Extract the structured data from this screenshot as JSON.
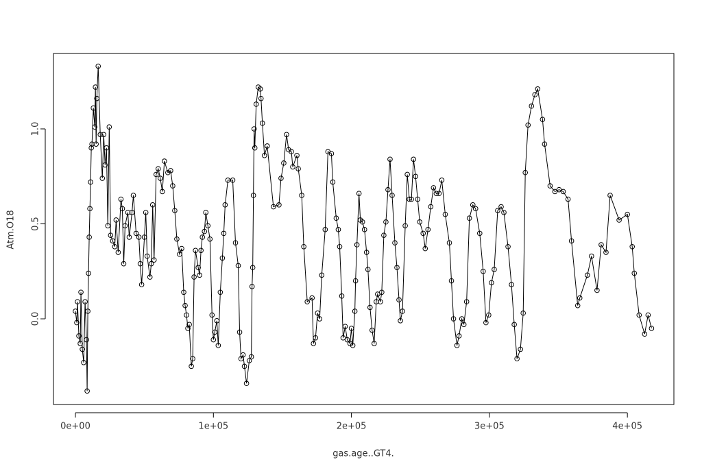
{
  "chart_data": {
    "type": "line",
    "xlabel": "gas.age..GT4.",
    "ylabel": "Atm.O18",
    "xlim": [
      -15900,
      433700
    ],
    "ylim": [
      -0.451,
      1.397
    ],
    "xticks": [
      {
        "value": 0,
        "label": "0e+00"
      },
      {
        "value": 100000,
        "label": "1e+05"
      },
      {
        "value": 200000,
        "label": "2e+05"
      },
      {
        "value": 300000,
        "label": "3e+05"
      },
      {
        "value": 400000,
        "label": "4e+05"
      }
    ],
    "yticks": [
      {
        "value": 0,
        "label": "0.0"
      },
      {
        "value": 0.5,
        "label": "0.5"
      },
      {
        "value": 1,
        "label": "1.0"
      }
    ],
    "grid": false,
    "marker": "circle",
    "x": [
      0,
      1000,
      1500,
      2500,
      3500,
      4000,
      5000,
      6000,
      7000,
      8000,
      8500,
      9000,
      9500,
      10000,
      10500,
      11000,
      11500,
      12000,
      13000,
      14000,
      14500,
      15000,
      15500,
      16500,
      18000,
      19500,
      20500,
      21500,
      22500,
      23500,
      24500,
      25500,
      27000,
      28500,
      29500,
      31000,
      33000,
      34000,
      35000,
      36000,
      38000,
      39000,
      41000,
      42000,
      44000,
      46000,
      47000,
      48000,
      50000,
      51000,
      52000,
      54000,
      55000,
      56000,
      57000,
      58500,
      60000,
      61500,
      63000,
      64500,
      67000,
      69000,
      70500,
      72000,
      73500,
      75500,
      77000,
      78500,
      79500,
      80500,
      81500,
      82500,
      84000,
      85000,
      86000,
      87000,
      89000,
      90000,
      91000,
      92000,
      93500,
      94500,
      96000,
      97500,
      99000,
      100000,
      101000,
      102500,
      103500,
      105000,
      106500,
      107500,
      108500,
      110500,
      114000,
      116000,
      118000,
      119000,
      120000,
      121500,
      122500,
      124000,
      126000,
      127500,
      128000,
      128500,
      129000,
      129500,
      130000,
      131000,
      132500,
      134000,
      134500,
      135500,
      137000,
      139000,
      143500,
      147500,
      149000,
      151000,
      153000,
      154500,
      156500,
      157500,
      160500,
      161500,
      164000,
      165500,
      168000,
      171500,
      172500,
      174000,
      175500,
      177000,
      178500,
      181000,
      183000,
      185500,
      186500,
      189000,
      190500,
      191500,
      193000,
      194000,
      195500,
      197000,
      199000,
      200000,
      201000,
      202500,
      203000,
      204000,
      205500,
      206500,
      208000,
      209500,
      211000,
      212000,
      213500,
      215000,
      216500,
      218000,
      219000,
      221000,
      222000,
      223500,
      225000,
      226500,
      228000,
      229500,
      231500,
      233000,
      234500,
      235500,
      237000,
      239000,
      240500,
      242000,
      243500,
      245000,
      246500,
      248000,
      249500,
      252000,
      253500,
      255500,
      257500,
      259500,
      261500,
      263500,
      265500,
      268000,
      271000,
      272500,
      274000,
      276500,
      278000,
      280000,
      281500,
      283500,
      285500,
      288000,
      290000,
      293000,
      295500,
      297500,
      299500,
      301500,
      303500,
      306000,
      308500,
      310500,
      313500,
      316000,
      318000,
      320000,
      322500,
      324500,
      326000,
      328000,
      330500,
      333000,
      335000,
      338500,
      340000,
      344000,
      347500,
      350500,
      353500,
      357000,
      359500,
      364000,
      365500,
      371000,
      374000,
      378000,
      381000,
      384500,
      387500,
      394000,
      400000,
      403500,
      405000,
      408500,
      412500,
      415000,
      417500
    ],
    "series": [
      {
        "name": "Atm.O18",
        "color": "#000000",
        "values": [
          0.04,
          -0.02,
          0.09,
          -0.09,
          -0.13,
          0.14,
          -0.16,
          -0.23,
          0.09,
          -0.11,
          -0.38,
          0.04,
          0.24,
          0.43,
          0.58,
          0.72,
          0.9,
          0.92,
          1.11,
          1.01,
          1.22,
          0.92,
          1.16,
          1.33,
          0.97,
          0.74,
          0.97,
          0.81,
          0.9,
          0.49,
          1.01,
          0.44,
          0.41,
          0.38,
          0.52,
          0.35,
          0.63,
          0.58,
          0.29,
          0.49,
          0.56,
          0.43,
          0.56,
          0.65,
          0.45,
          0.43,
          0.29,
          0.18,
          0.43,
          0.56,
          0.33,
          0.22,
          0.29,
          0.6,
          0.31,
          0.76,
          0.79,
          0.74,
          0.67,
          0.83,
          0.77,
          0.78,
          0.7,
          0.57,
          0.42,
          0.34,
          0.37,
          0.14,
          0.07,
          0.02,
          -0.05,
          -0.03,
          -0.25,
          -0.21,
          0.22,
          0.36,
          0.27,
          0.23,
          0.36,
          0.43,
          0.46,
          0.56,
          0.49,
          0.42,
          0.02,
          -0.11,
          -0.07,
          -0.01,
          -0.14,
          0.14,
          0.32,
          0.45,
          0.6,
          0.73,
          0.73,
          0.4,
          0.28,
          -0.07,
          -0.21,
          -0.19,
          -0.25,
          -0.34,
          -0.22,
          -0.2,
          0.17,
          0.27,
          0.65,
          1.0,
          0.9,
          1.13,
          1.22,
          1.21,
          1.16,
          1.03,
          0.86,
          0.91,
          0.59,
          0.6,
          0.74,
          0.82,
          0.97,
          0.89,
          0.88,
          0.8,
          0.86,
          0.79,
          0.65,
          0.38,
          0.09,
          0.11,
          -0.13,
          -0.1,
          0.03,
          -0.0,
          0.23,
          0.47,
          0.88,
          0.87,
          0.72,
          0.53,
          0.47,
          0.38,
          0.12,
          -0.1,
          -0.04,
          -0.11,
          -0.13,
          -0.05,
          -0.14,
          0.04,
          0.2,
          0.39,
          0.66,
          0.52,
          0.51,
          0.47,
          0.35,
          0.26,
          0.06,
          -0.06,
          -0.13,
          0.09,
          0.13,
          0.09,
          0.14,
          0.44,
          0.51,
          0.68,
          0.84,
          0.65,
          0.4,
          0.27,
          0.1,
          -0.01,
          0.04,
          0.49,
          0.76,
          0.63,
          0.63,
          0.84,
          0.75,
          0.63,
          0.51,
          0.45,
          0.37,
          0.47,
          0.59,
          0.69,
          0.66,
          0.66,
          0.73,
          0.55,
          0.4,
          0.2,
          0.0,
          -0.14,
          -0.09,
          -0.0,
          -0.03,
          0.09,
          0.53,
          0.6,
          0.58,
          0.45,
          0.25,
          -0.02,
          0.02,
          0.19,
          0.26,
          0.57,
          0.59,
          0.56,
          0.38,
          0.18,
          -0.03,
          -0.21,
          -0.16,
          0.03,
          0.77,
          1.02,
          1.12,
          1.18,
          1.21,
          1.05,
          0.92,
          0.7,
          0.67,
          0.68,
          0.67,
          0.63,
          0.41,
          0.07,
          0.11,
          0.23,
          0.33,
          0.15,
          0.39,
          0.35,
          0.65,
          0.52,
          0.55,
          0.38,
          0.24,
          0.02,
          -0.08,
          0.02,
          -0.05
        ]
      }
    ]
  }
}
